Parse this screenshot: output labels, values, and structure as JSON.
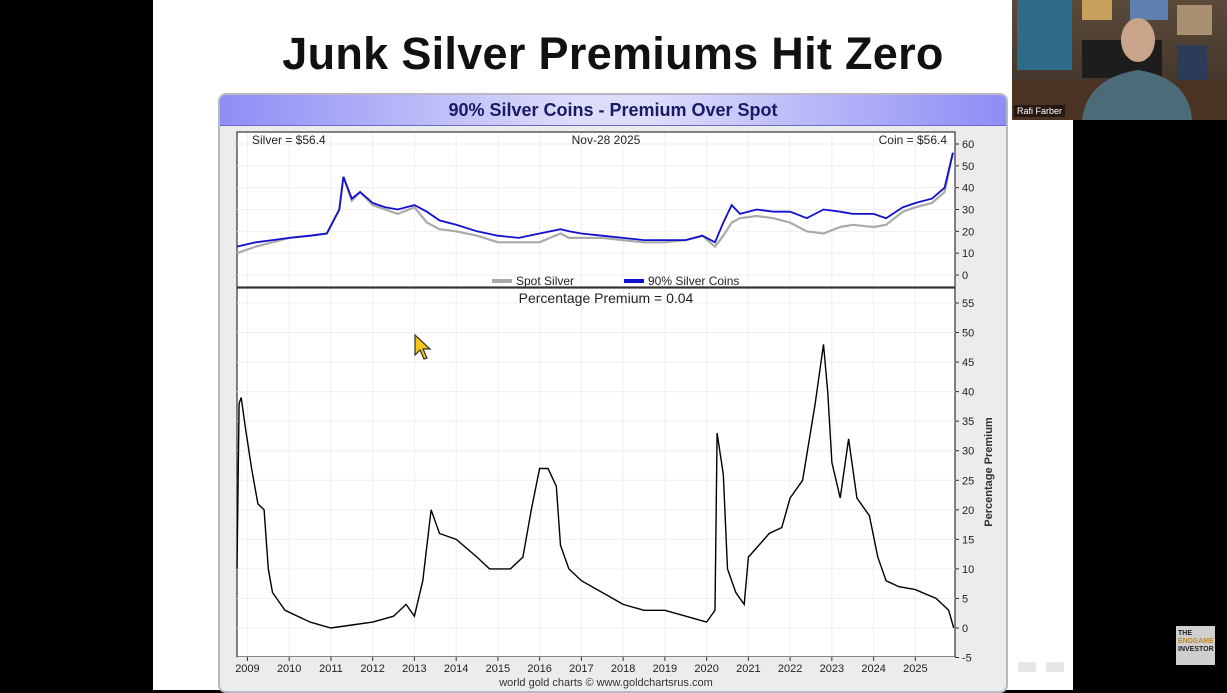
{
  "slide": {
    "title": "Junk Silver Premiums Hit Zero"
  },
  "webcam": {
    "name": "Rafi Farber"
  },
  "logo": {
    "line1": "THE",
    "line2": "ENDGAME",
    "line3": "INVESTOR"
  },
  "chart_data": [
    {
      "type": "line",
      "title": "90% Silver Coins - Premium Over Spot",
      "annotations": {
        "left": "Silver = $56.4",
        "center": "Nov-28  2025",
        "right": "Coin = $56.4"
      },
      "ylim": [
        0,
        60
      ],
      "yticks": [
        0,
        10,
        20,
        30,
        40,
        50,
        60
      ],
      "legend": {
        "placement": "bottom-center",
        "entries": [
          "Spot Silver",
          "90% Silver Coins"
        ]
      },
      "colors": {
        "spot": "#aaaaaa",
        "coin": "#1010d0"
      },
      "x": [
        2008.75,
        2009.2,
        2009.6,
        2010.0,
        2010.5,
        2010.9,
        2011.2,
        2011.3,
        2011.5,
        2011.7,
        2012.0,
        2012.3,
        2012.6,
        2013.0,
        2013.3,
        2013.6,
        2014.0,
        2014.5,
        2015.0,
        2015.5,
        2016.0,
        2016.5,
        2016.7,
        2017.0,
        2017.5,
        2018.0,
        2018.5,
        2019.0,
        2019.5,
        2019.9,
        2020.2,
        2020.4,
        2020.6,
        2020.8,
        2021.2,
        2021.6,
        2022.0,
        2022.4,
        2022.8,
        2023.2,
        2023.5,
        2024.0,
        2024.3,
        2024.7,
        2025.0,
        2025.4,
        2025.7,
        2025.9
      ],
      "series": [
        {
          "name": "Spot Silver",
          "values": [
            10,
            13,
            15,
            17,
            18,
            19,
            30,
            45,
            34,
            38,
            32,
            30,
            28,
            31,
            24,
            21,
            20,
            18,
            15,
            15,
            15,
            19,
            17,
            17,
            17,
            16,
            15,
            15,
            16,
            18,
            13,
            18,
            24,
            26,
            27,
            26,
            24,
            20,
            19,
            22,
            23,
            22,
            23,
            29,
            31,
            33,
            38,
            56
          ]
        },
        {
          "name": "90% Silver Coins",
          "values": [
            13,
            15,
            16,
            17,
            18,
            19,
            30,
            45,
            35,
            38,
            33,
            31,
            30,
            32,
            29,
            25,
            23,
            20,
            18,
            17,
            19,
            21,
            20,
            19,
            18,
            17,
            16,
            16,
            16,
            18,
            15,
            24,
            32,
            28,
            30,
            29,
            29,
            26,
            30,
            29,
            28,
            28,
            26,
            31,
            33,
            35,
            40,
            56
          ]
        }
      ]
    },
    {
      "type": "line",
      "title": "Percentage Premium = 0.04",
      "ylabel": "Percentage Premium",
      "ylim": [
        -5,
        55
      ],
      "yticks": [
        -5,
        0,
        5,
        10,
        15,
        20,
        25,
        30,
        35,
        40,
        45,
        50,
        55
      ],
      "xticks": [
        "2009",
        "2010",
        "2011",
        "2012",
        "2013",
        "2014",
        "2015",
        "2016",
        "2017",
        "2018",
        "2019",
        "2020",
        "2021",
        "2022",
        "2023",
        "2024",
        "2025"
      ],
      "footer": "world gold charts © www.goldchartsrus.com",
      "color": "#000000",
      "x": [
        2008.75,
        2008.8,
        2008.85,
        2008.95,
        2009.1,
        2009.25,
        2009.4,
        2009.5,
        2009.6,
        2009.9,
        2010.5,
        2011.0,
        2011.5,
        2012.0,
        2012.5,
        2012.8,
        2013.0,
        2013.2,
        2013.4,
        2013.6,
        2014.0,
        2014.5,
        2014.8,
        2015.3,
        2015.6,
        2015.8,
        2016.0,
        2016.2,
        2016.4,
        2016.5,
        2016.7,
        2017.0,
        2017.5,
        2018.0,
        2018.5,
        2019.0,
        2019.5,
        2020.0,
        2020.2,
        2020.25,
        2020.4,
        2020.5,
        2020.7,
        2020.9,
        2021.0,
        2021.5,
        2021.8,
        2022.0,
        2022.3,
        2022.6,
        2022.8,
        2022.9,
        2023.0,
        2023.2,
        2023.4,
        2023.6,
        2023.9,
        2024.1,
        2024.3,
        2024.6,
        2025.0,
        2025.5,
        2025.8,
        2025.92
      ],
      "values": [
        10,
        38,
        39,
        34,
        27,
        21,
        20,
        10,
        6,
        3,
        1,
        0,
        0.5,
        1,
        2,
        4,
        2,
        8,
        20,
        16,
        15,
        12,
        10,
        10,
        12,
        20,
        27,
        27,
        24,
        14,
        10,
        8,
        6,
        4,
        3,
        3,
        2,
        1,
        3,
        33,
        26,
        10,
        6,
        4,
        12,
        16,
        17,
        22,
        25,
        38,
        48,
        40,
        28,
        22,
        32,
        22,
        19,
        12,
        8,
        7,
        6.5,
        5,
        3,
        0
      ]
    }
  ]
}
